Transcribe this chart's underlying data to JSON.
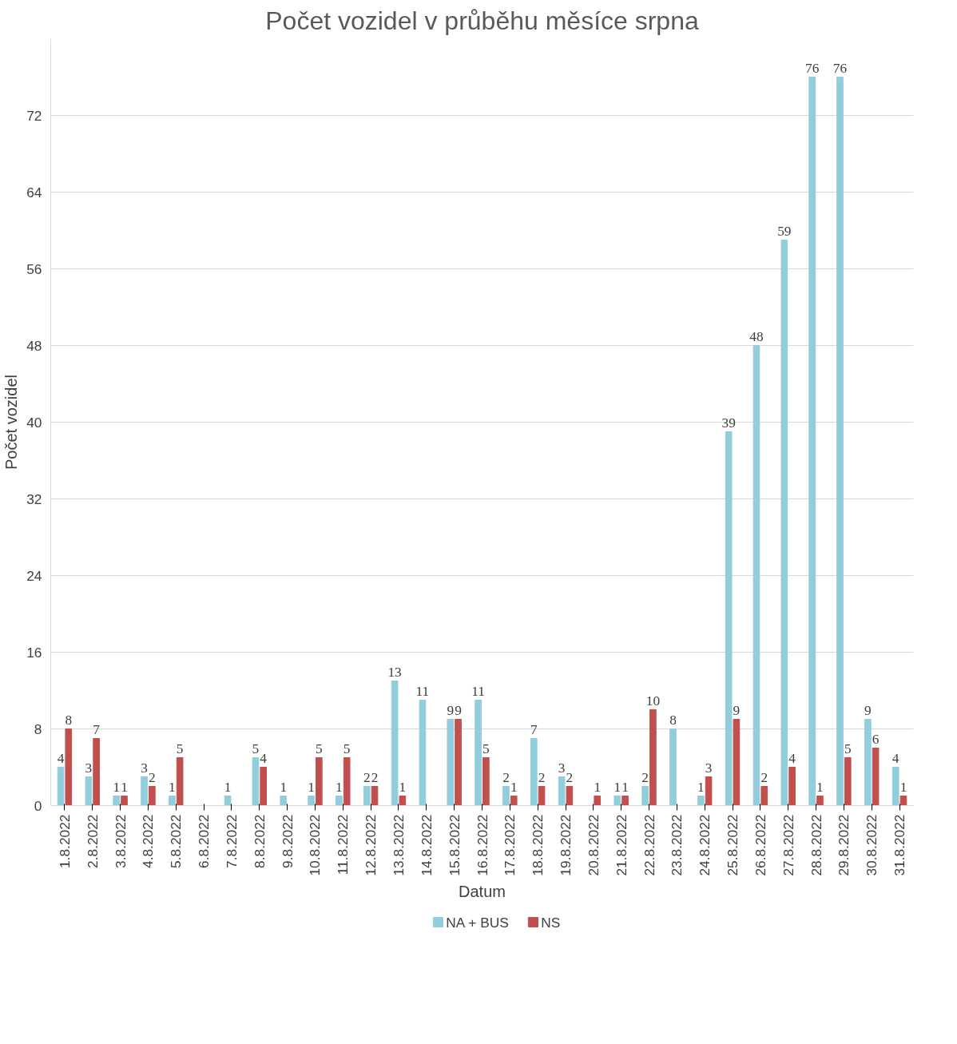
{
  "chart_data": {
    "type": "bar",
    "title": "Počet vozidel v průběhu měsíce srpna",
    "xlabel": "Datum",
    "ylabel": "Počet vozidel",
    "categories": [
      "1.8.2022",
      "2.8.2022",
      "3.8.2022",
      "4.8.2022",
      "5.8.2022",
      "6.8.2022",
      "7.8.2022",
      "8.8.2022",
      "9.8.2022",
      "10.8.2022",
      "11.8.2022",
      "12.8.2022",
      "13.8.2022",
      "14.8.2022",
      "15.8.2022",
      "16.8.2022",
      "17.8.2022",
      "18.8.2022",
      "19.8.2022",
      "20.8.2022",
      "21.8.2022",
      "22.8.2022",
      "23.8.2022",
      "24.8.2022",
      "25.8.2022",
      "26.8.2022",
      "27.8.2022",
      "28.8.2022",
      "29.8.2022",
      "30.8.2022",
      "31.8.2022"
    ],
    "series": [
      {
        "name": "NA + BUS",
        "color": "#92cddc",
        "values": [
          4,
          3,
          1,
          3,
          1,
          0,
          1,
          5,
          1,
          1,
          1,
          2,
          13,
          11,
          9,
          11,
          2,
          7,
          3,
          0,
          1,
          2,
          8,
          1,
          39,
          48,
          59,
          76,
          76,
          9,
          4
        ],
        "value_labels": [
          "4",
          "3",
          "1",
          "3",
          "1",
          null,
          "1",
          "5",
          "1",
          "1",
          "1",
          "2",
          "13",
          "11",
          "9",
          "11",
          "2",
          "7",
          "3",
          null,
          "1",
          "2",
          "8",
          "1",
          "39",
          "48",
          "59",
          "76",
          "76",
          "9",
          "4"
        ]
      },
      {
        "name": "NS",
        "color": "#c0504d",
        "values": [
          8,
          7,
          1,
          2,
          5,
          0,
          0,
          4,
          0,
          5,
          5,
          2,
          1,
          0,
          9,
          5,
          1,
          2,
          2,
          1,
          1,
          10,
          0,
          3,
          9,
          2,
          4,
          1,
          5,
          6,
          1
        ],
        "value_labels": [
          "8",
          "7",
          "1",
          "2",
          "5",
          null,
          null,
          "4",
          null,
          "5",
          "5",
          "2",
          "1",
          null,
          "9",
          "5",
          "1",
          "2",
          "2",
          "1",
          "1",
          "10",
          null,
          "3",
          "9",
          "2",
          "4",
          "1",
          "5",
          "6",
          "1"
        ]
      }
    ],
    "ylim": [
      0,
      80
    ],
    "yticks": [
      0,
      8,
      16,
      24,
      32,
      40,
      48,
      56,
      64,
      72
    ],
    "grid": "y",
    "legend": "bottom"
  }
}
